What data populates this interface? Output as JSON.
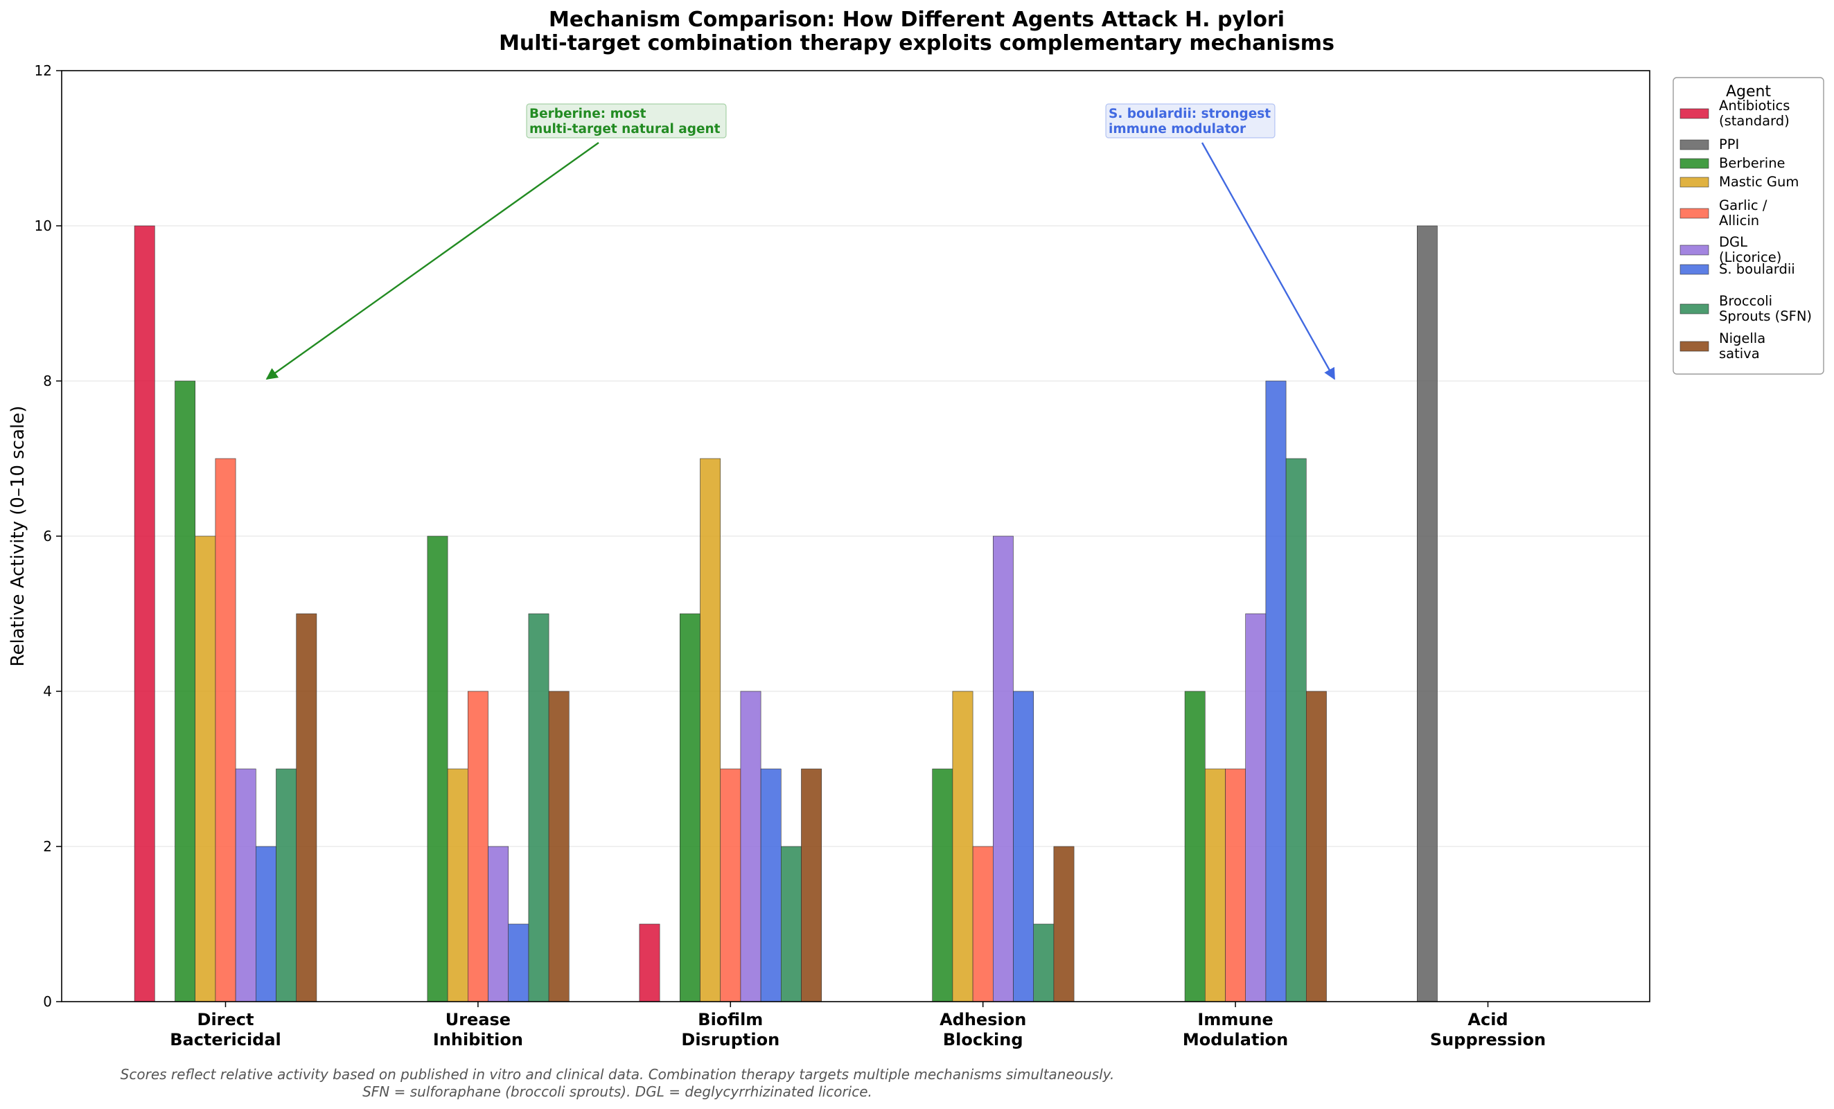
{
  "chart_data": {
    "type": "bar",
    "title": "Mechanism Comparison: How Different Agents Attack H. pylori",
    "subtitle": "Multi-target combination therapy exploits complementary mechanisms",
    "xlabel": "",
    "ylabel": "Relative Activity (0–10 scale)",
    "ylim": [
      0,
      12
    ],
    "yticks": [
      0,
      2,
      4,
      6,
      8,
      10,
      12
    ],
    "grid": "horizontal, faint",
    "categories": [
      [
        "Direct",
        "Bactericidal"
      ],
      [
        "Urease",
        "Inhibition"
      ],
      [
        "Biofilm",
        "Disruption"
      ],
      [
        "Adhesion",
        "Blocking"
      ],
      [
        "Immune",
        "Modulation"
      ],
      [
        "Acid",
        "Suppression"
      ]
    ],
    "legend": {
      "title": "Agent",
      "placement": "outside upper right"
    },
    "series": [
      {
        "name": [
          "Antibiotics",
          "(standard)"
        ],
        "color": "#dc143c",
        "values": [
          10,
          0,
          1,
          0,
          0,
          0
        ]
      },
      {
        "name": [
          "PPI"
        ],
        "color": "#606060",
        "values": [
          0,
          0,
          0,
          0,
          0,
          10
        ]
      },
      {
        "name": [
          "Berberine"
        ],
        "color": "#228b22",
        "values": [
          8,
          6,
          5,
          3,
          4,
          0
        ]
      },
      {
        "name": [
          "Mastic Gum"
        ],
        "color": "#daa520",
        "values": [
          6,
          3,
          7,
          4,
          3,
          0
        ]
      },
      {
        "name": [
          "Garlic /",
          "Allicin"
        ],
        "color": "#ff6347",
        "values": [
          7,
          4,
          3,
          2,
          3,
          0
        ]
      },
      {
        "name": [
          "DGL",
          "(Licorice)"
        ],
        "color": "#9370db",
        "values": [
          3,
          2,
          4,
          6,
          5,
          0
        ]
      },
      {
        "name": [
          "S. boulardii"
        ],
        "color": "#4169e1",
        "values": [
          2,
          1,
          3,
          4,
          8,
          0
        ]
      },
      {
        "name": [
          "Broccoli",
          "Sprouts (SFN)"
        ],
        "color": "#2e8b57",
        "values": [
          3,
          5,
          2,
          1,
          7,
          0
        ]
      },
      {
        "name": [
          "Nigella",
          "sativa"
        ],
        "color": "#8b4513",
        "values": [
          5,
          4,
          3,
          2,
          4,
          0
        ]
      }
    ],
    "annotations": [
      {
        "text": [
          "Berberine: most",
          "multi-target natural agent"
        ],
        "color": "#228b22",
        "points_to": {
          "x": "Direct Bactericidal",
          "y": 8
        }
      },
      {
        "text": [
          "S. boulardii: strongest",
          "immune modulator"
        ],
        "color": "#4169e1",
        "points_to": {
          "x": "Immune Modulation",
          "y": 8
        }
      }
    ],
    "footnote": [
      "Scores reflect relative activity based on published in vitro and clinical data.  Combination therapy targets multiple mechanisms simultaneously.",
      "SFN = sulforaphane (broccoli sprouts).  DGL = deglycyrrhizinated licorice."
    ]
  }
}
